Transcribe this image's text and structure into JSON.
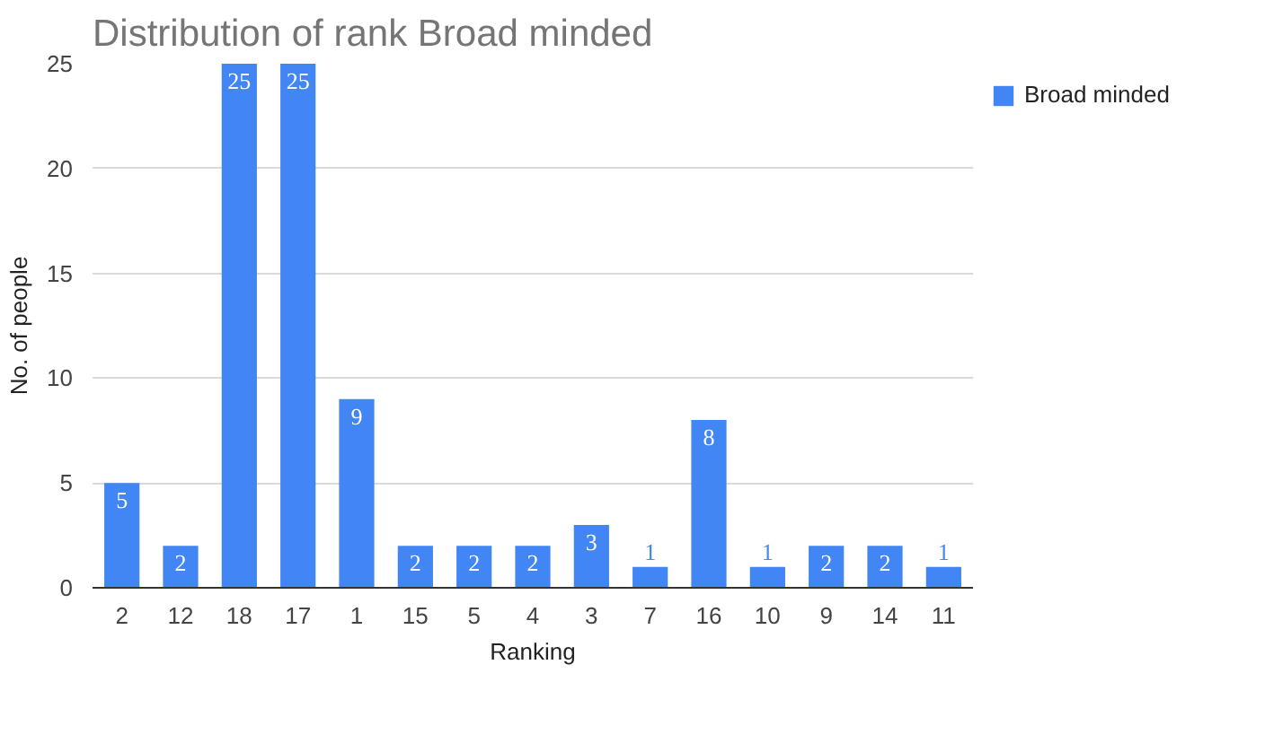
{
  "chart_data": {
    "type": "bar",
    "title": "Distribution of rank Broad minded",
    "xlabel": "Ranking",
    "ylabel": "No. of people",
    "categories": [
      "2",
      "12",
      "18",
      "17",
      "1",
      "15",
      "5",
      "4",
      "3",
      "7",
      "16",
      "10",
      "9",
      "14",
      "11"
    ],
    "series": [
      {
        "name": "Broad minded",
        "color": "#4285f4",
        "values": [
          5,
          2,
          25,
          25,
          9,
          2,
          2,
          2,
          3,
          1,
          8,
          1,
          2,
          2,
          1
        ]
      }
    ],
    "ylim": [
      0,
      25
    ],
    "yticks": [
      0,
      5,
      10,
      15,
      20,
      25
    ],
    "grid": "y",
    "legend": "right",
    "data_labels": true
  }
}
